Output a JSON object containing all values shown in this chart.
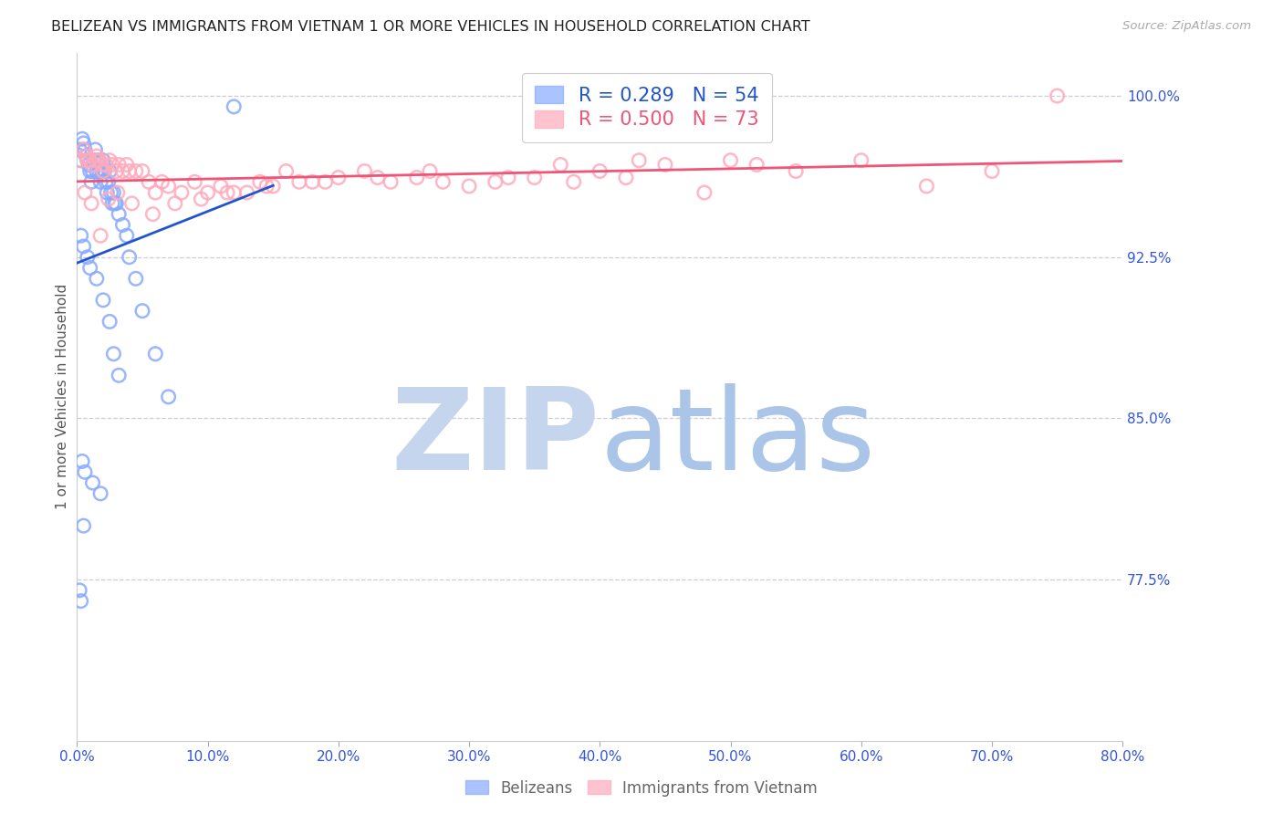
{
  "title": "BELIZEAN VS IMMIGRANTS FROM VIETNAM 1 OR MORE VEHICLES IN HOUSEHOLD CORRELATION CHART",
  "source": "Source: ZipAtlas.com",
  "ylabel": "1 or more Vehicles in Household",
  "belizean_R": 0.289,
  "belizean_N": 54,
  "vietnam_R": 0.5,
  "vietnam_N": 73,
  "xmin": 0.0,
  "xmax": 80.0,
  "ymin": 70.0,
  "ymax": 102.0,
  "yticks": [
    100.0,
    92.5,
    85.0,
    77.5
  ],
  "xticks": [
    0.0,
    10.0,
    20.0,
    30.0,
    40.0,
    50.0,
    60.0,
    70.0,
    80.0
  ],
  "blue_scatter_color": "#88aaff",
  "pink_scatter_color": "#ffaabb",
  "blue_line_color": "#2255cc",
  "pink_line_color": "#ee5577",
  "tick_label_color": "#3355dd",
  "grid_color": "#ccccdd",
  "title_color": "#222222",
  "watermark_zip_color": "#c5d5ee",
  "watermark_atlas_color": "#aac5e8",
  "belizean_x": [
    0.2,
    0.3,
    0.4,
    0.5,
    0.6,
    0.7,
    0.8,
    0.9,
    1.0,
    1.1,
    1.2,
    1.3,
    1.4,
    1.5,
    1.6,
    1.7,
    1.8,
    1.9,
    2.0,
    2.1,
    2.2,
    2.3,
    2.4,
    2.5,
    2.6,
    2.7,
    2.8,
    2.9,
    3.0,
    3.2,
    3.5,
    3.8,
    4.0,
    4.5,
    5.0,
    6.0,
    7.0,
    0.3,
    0.5,
    0.8,
    1.0,
    1.5,
    2.0,
    2.5,
    0.4,
    0.6,
    1.2,
    1.8,
    0.2,
    0.3,
    2.8,
    3.2,
    0.5,
    12.0
  ],
  "belizean_y": [
    97.5,
    97.0,
    98.0,
    97.8,
    97.5,
    97.2,
    97.0,
    96.8,
    96.5,
    96.0,
    96.5,
    97.0,
    97.5,
    96.5,
    97.0,
    96.5,
    96.0,
    96.5,
    97.0,
    96.5,
    96.0,
    95.5,
    96.0,
    96.5,
    95.5,
    95.0,
    95.5,
    95.0,
    95.0,
    94.5,
    94.0,
    93.5,
    92.5,
    91.5,
    90.0,
    88.0,
    86.0,
    93.5,
    93.0,
    92.5,
    92.0,
    91.5,
    90.5,
    89.5,
    83.0,
    82.5,
    82.0,
    81.5,
    77.0,
    76.5,
    88.0,
    87.0,
    80.0,
    99.5
  ],
  "vietnam_x": [
    0.3,
    0.5,
    0.7,
    0.8,
    1.0,
    1.2,
    1.4,
    1.5,
    1.7,
    1.9,
    2.0,
    2.2,
    2.5,
    2.7,
    3.0,
    3.2,
    3.5,
    3.8,
    4.0,
    4.5,
    5.0,
    5.5,
    6.0,
    6.5,
    7.0,
    8.0,
    9.0,
    10.0,
    11.0,
    12.0,
    13.0,
    14.0,
    15.0,
    16.0,
    17.0,
    18.0,
    20.0,
    22.0,
    24.0,
    26.0,
    28.0,
    30.0,
    32.0,
    35.0,
    38.0,
    40.0,
    42.0,
    45.0,
    48.0,
    50.0,
    55.0,
    60.0,
    65.0,
    70.0,
    75.0,
    0.6,
    1.1,
    1.8,
    2.4,
    3.1,
    4.2,
    5.8,
    7.5,
    9.5,
    11.5,
    14.5,
    19.0,
    23.0,
    27.0,
    33.0,
    37.0,
    43.0,
    52.0
  ],
  "vietnam_y": [
    97.0,
    97.5,
    97.2,
    97.0,
    97.0,
    96.8,
    97.0,
    97.2,
    97.0,
    96.8,
    96.5,
    96.8,
    97.0,
    96.8,
    96.5,
    96.8,
    96.5,
    96.8,
    96.5,
    96.5,
    96.5,
    96.0,
    95.5,
    96.0,
    95.8,
    95.5,
    96.0,
    95.5,
    95.8,
    95.5,
    95.5,
    96.0,
    95.8,
    96.5,
    96.0,
    96.0,
    96.2,
    96.5,
    96.0,
    96.2,
    96.0,
    95.8,
    96.0,
    96.2,
    96.0,
    96.5,
    96.2,
    96.8,
    95.5,
    97.0,
    96.5,
    97.0,
    95.8,
    96.5,
    100.0,
    95.5,
    95.0,
    93.5,
    95.2,
    95.5,
    95.0,
    94.5,
    95.0,
    95.2,
    95.5,
    95.8,
    96.0,
    96.2,
    96.5,
    96.2,
    96.8,
    97.0,
    96.8
  ]
}
